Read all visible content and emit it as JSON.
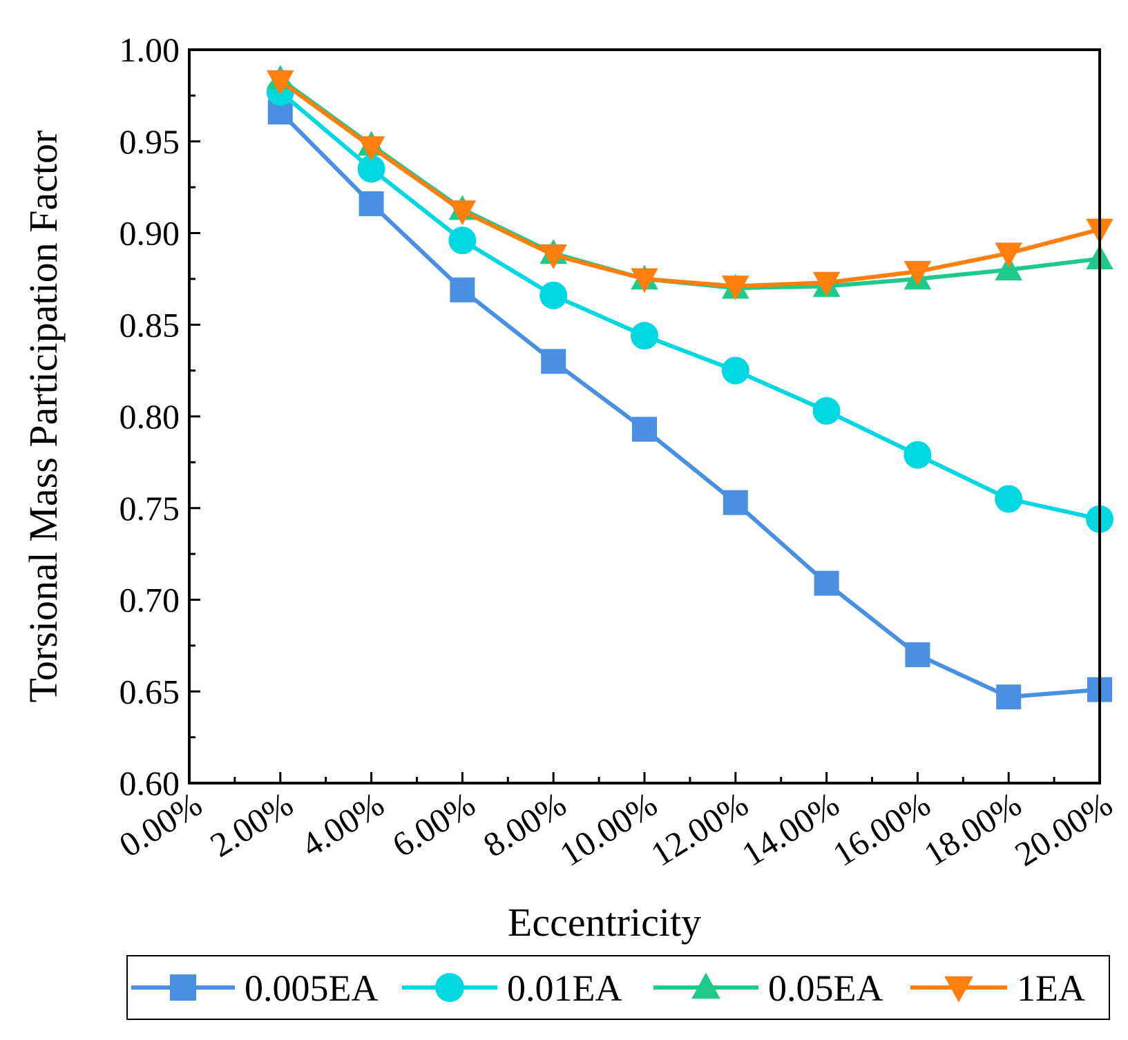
{
  "chart_data": {
    "type": "line",
    "title": "",
    "xlabel": "Eccentricity",
    "ylabel": "Torsional Mass Participation Factor",
    "x": [
      0.02,
      0.04,
      0.06,
      0.08,
      0.1,
      0.12,
      0.14,
      0.16,
      0.18,
      0.2
    ],
    "xlim": [
      0.0,
      0.2
    ],
    "ylim": [
      0.6,
      1.0
    ],
    "x_ticks": [
      0.0,
      0.02,
      0.04,
      0.06,
      0.08,
      0.1,
      0.12,
      0.14,
      0.16,
      0.18,
      0.2
    ],
    "x_tick_labels": [
      "0.00%",
      "2.00%",
      "4.00%",
      "6.00%",
      "8.00%",
      "10.00%",
      "12.00%",
      "14.00%",
      "16.00%",
      "18.00%",
      "20.00%"
    ],
    "y_ticks": [
      0.6,
      0.65,
      0.7,
      0.75,
      0.8,
      0.85,
      0.9,
      0.95,
      1.0
    ],
    "y_tick_labels": [
      "0.60",
      "0.65",
      "0.70",
      "0.75",
      "0.80",
      "0.85",
      "0.90",
      "0.95",
      "1.00"
    ],
    "grid": false,
    "legend_position": "bottom",
    "series": [
      {
        "name": "0.005EA",
        "marker": "square",
        "color": "#4a90e2",
        "values": [
          0.966,
          0.916,
          0.869,
          0.83,
          0.793,
          0.753,
          0.709,
          0.67,
          0.647,
          0.651
        ]
      },
      {
        "name": "0.01EA",
        "marker": "circle",
        "color": "#00d7e0",
        "values": [
          0.977,
          0.935,
          0.896,
          0.866,
          0.844,
          0.825,
          0.803,
          0.779,
          0.755,
          0.744
        ]
      },
      {
        "name": "0.05EA",
        "marker": "triangle-up",
        "color": "#1ec98a",
        "values": [
          0.984,
          0.948,
          0.913,
          0.889,
          0.875,
          0.87,
          0.871,
          0.875,
          0.88,
          0.886
        ]
      },
      {
        "name": "1EA",
        "marker": "triangle-down",
        "color": "#ff7f0e",
        "values": [
          0.983,
          0.947,
          0.912,
          0.888,
          0.875,
          0.871,
          0.873,
          0.879,
          0.889,
          0.902
        ]
      }
    ]
  }
}
